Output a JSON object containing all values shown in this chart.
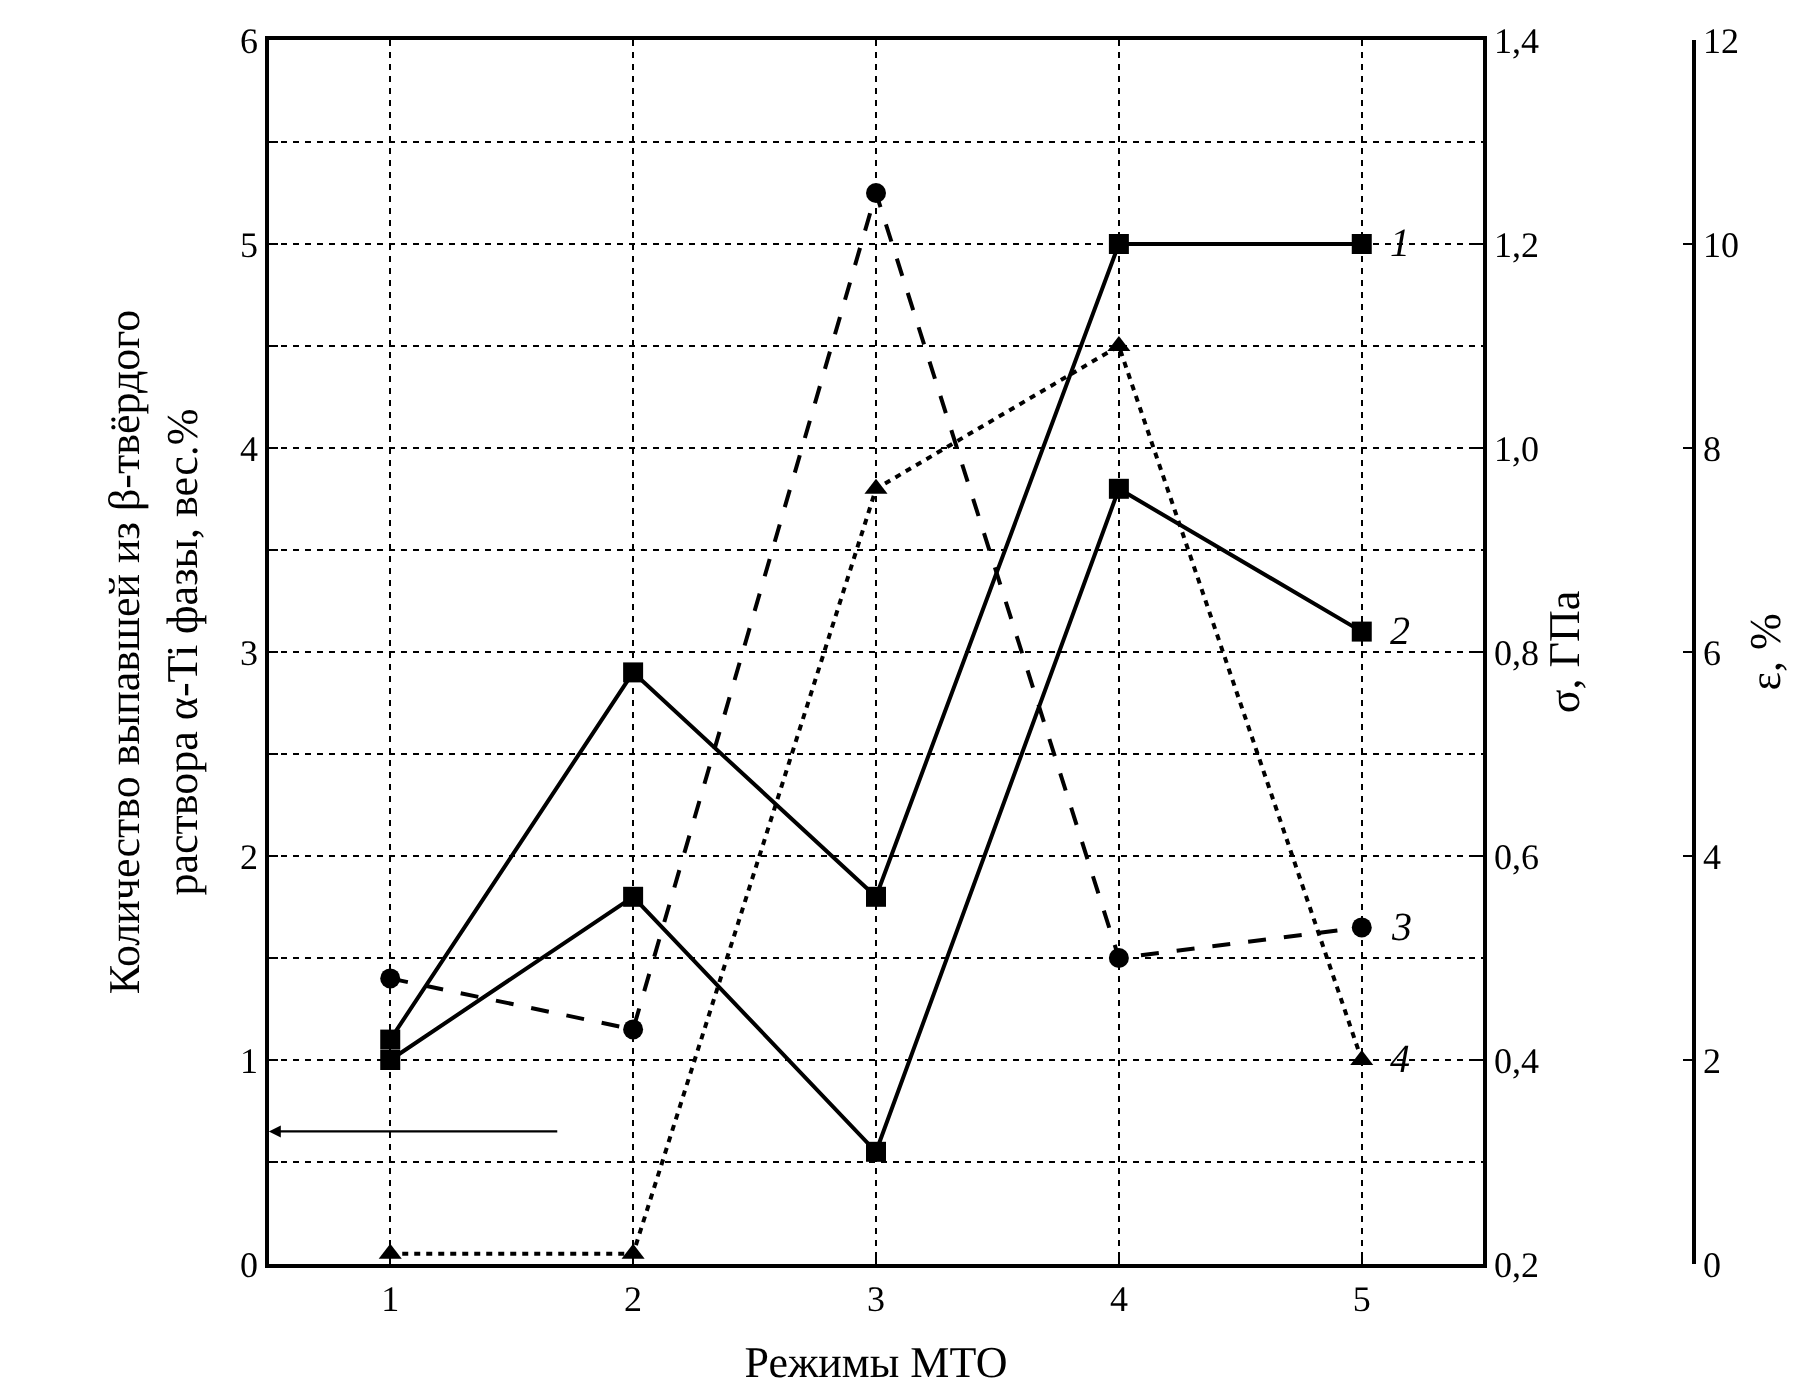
{
  "chart_data": {
    "type": "line",
    "xlabel": "Режимы МТО",
    "ylabel": "Количество выпавшей из β-твёрдого\nраствора α-Ti фазы, вес.%",
    "y2label": "σ, ГПа",
    "y3label": "ε, %",
    "x": [
      1,
      2,
      3,
      4,
      5
    ],
    "xlim": [
      0.5,
      5.5
    ],
    "xticks": [
      1,
      2,
      3,
      4,
      5
    ],
    "ylim": [
      0,
      6
    ],
    "yticks": [
      0,
      {
        "value": 0.5,
        "label": null
      },
      1,
      {
        "value": 1.5,
        "label": null
      },
      2,
      {
        "value": 2.5,
        "label": null
      },
      3,
      {
        "value": 3.5,
        "label": null
      },
      4,
      {
        "value": 4.5,
        "label": null
      },
      5,
      {
        "value": 5.5,
        "label": null
      },
      6
    ],
    "y2lim": [
      0.2,
      1.4
    ],
    "y2ticks": [
      {
        "value": 0.2,
        "label": "0,2"
      },
      {
        "value": 0.4,
        "label": "0,4"
      },
      {
        "value": 0.6,
        "label": "0,6"
      },
      {
        "value": 0.8,
        "label": "0,8"
      },
      {
        "value": 1.0,
        "label": "1,0"
      },
      {
        "value": 1.2,
        "label": "1,2"
      },
      {
        "value": 1.4,
        "label": "1,4"
      }
    ],
    "y3lim": [
      0,
      12
    ],
    "y3ticks": [
      0,
      2,
      4,
      6,
      8,
      10,
      12
    ],
    "grid": true,
    "legend": false,
    "series": [
      {
        "name": "1",
        "color": "#000000",
        "axis": "y2",
        "marker": "square",
        "line_style": "solid",
        "values": [
          0.42,
          0.78,
          0.56,
          1.2,
          1.2
        ]
      },
      {
        "name": "2",
        "color": "#000000",
        "axis": "y2",
        "marker": "square",
        "line_style": "solid",
        "values": [
          0.4,
          0.56,
          0.31,
          0.96,
          0.82
        ]
      },
      {
        "name": "3",
        "color": "#000000",
        "axis": "y3",
        "marker": "circle",
        "line_style": "dashed",
        "values": [
          2.8,
          2.3,
          10.5,
          3.0,
          3.3
        ]
      },
      {
        "name": "4",
        "color": "#000000",
        "axis": "y",
        "marker": "triangle",
        "line_style": "dotted",
        "values": [
          0.05,
          0.05,
          3.8,
          4.5,
          1.0
        ]
      }
    ]
  }
}
